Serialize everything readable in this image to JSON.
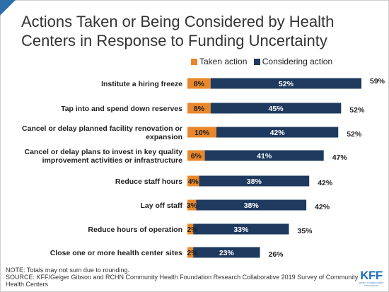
{
  "title": "Actions Taken or Being Considered by Health Centers in Response to Funding Uncertainty",
  "legend": {
    "taken": "Taken action",
    "considering": "Considering action"
  },
  "colors": {
    "taken": "#e8872b",
    "considering": "#1f3a5f",
    "accent": "#2d6fa8"
  },
  "chart_data": {
    "type": "bar",
    "orientation": "horizontal",
    "stacked": true,
    "categories": [
      "Institute a hiring freeze",
      "Tap into and spend down reserves",
      "Cancel or delay planned facility renovation or expansion",
      "Cancel or delay plans to invest in key quality improvement activities or infrastructure",
      "Reduce staff hours",
      "Lay off staff",
      "Reduce hours of operation",
      "Close one or more health center sites"
    ],
    "series": [
      {
        "name": "Taken action",
        "values": [
          8,
          8,
          10,
          6,
          4,
          3,
          2,
          2
        ],
        "labels": [
          "8%",
          "8%",
          "10%",
          "6%",
          "4%",
          "3%",
          "2%",
          "2%"
        ]
      },
      {
        "name": "Considering action",
        "values": [
          52,
          45,
          42,
          41,
          38,
          38,
          33,
          23
        ],
        "labels": [
          "52%",
          "45%",
          "42%",
          "41%",
          "38%",
          "38%",
          "33%",
          "23%"
        ]
      }
    ],
    "totals": [
      59,
      52,
      52,
      47,
      42,
      42,
      35,
      26
    ],
    "total_labels": [
      "59%",
      "52%",
      "52%",
      "47%",
      "42%",
      "42%",
      "35%",
      "26%"
    ],
    "legend_position": "top",
    "grid": false
  },
  "note": "NOTE: Totals may not sum due to rounding.",
  "source": "SOURCE: KFF/Geiger Gibson and RCHN Community Health Foundation Research Collaborative 2019 Survey of Community Health Centers",
  "logo": {
    "text": "KFF",
    "subtext": "HENRY J KAISER FAMILY FOUNDATION"
  }
}
